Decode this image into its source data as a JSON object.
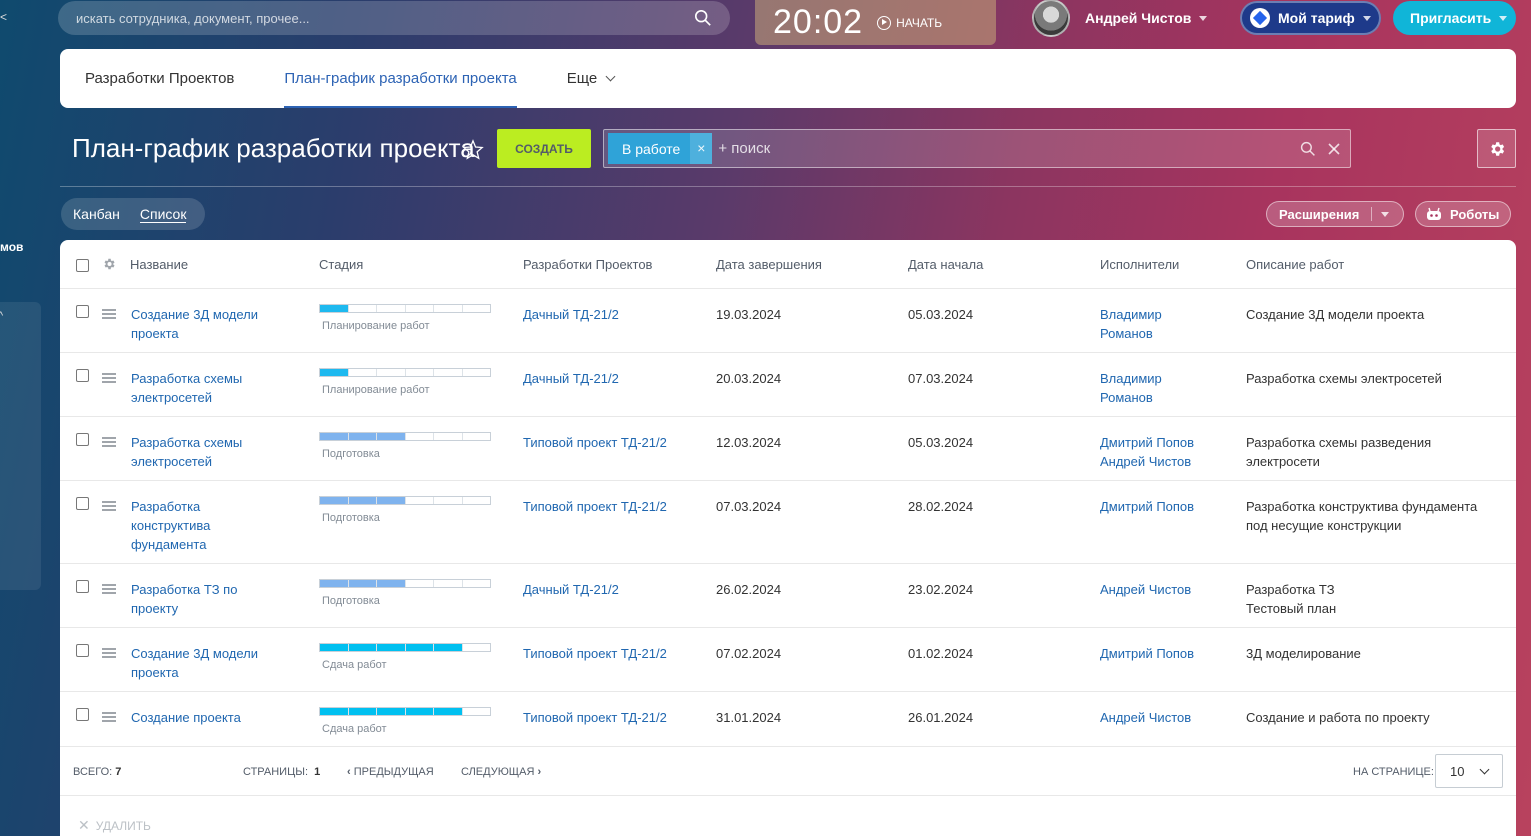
{
  "topbar": {
    "search_placeholder": "искать сотрудника, документ, прочее...",
    "clock_time": "20:02",
    "clock_start_label": "НАЧАТЬ",
    "user_name": "Андрей Чистов",
    "tariff_label": "Мой тариф",
    "invite_label": "Пригласить"
  },
  "left_strip": {
    "text": "мов"
  },
  "tabs": [
    {
      "label": "Разработки Проектов"
    },
    {
      "label": "План-график разработки проекта"
    },
    {
      "label": "Еще"
    }
  ],
  "page": {
    "title": "План-график разработки проекта",
    "create_label": "СОЗДАТЬ",
    "filter_chip": "В работе",
    "filter_search_placeholder": "+ поиск"
  },
  "views": {
    "kanban": "Канбан",
    "list": "Список"
  },
  "toolbar": {
    "extensions_label": "Расширения",
    "robots_label": "Роботы"
  },
  "table": {
    "columns": [
      "Название",
      "Стадия",
      "Разработки Проектов",
      "Дата завершения",
      "Дата начала",
      "Исполнители",
      "Описание работ"
    ],
    "rows": [
      {
        "name": "Создание 3Д модели проекта",
        "stage": "Планирование работ",
        "stage_progress": 0.17,
        "stage_color": "#1eb9ef",
        "project": "Дачный ТД-21/2",
        "end": "19.03.2024",
        "start": "05.03.2024",
        "assignees": [
          "Владимир Романов"
        ],
        "description": "Создание 3Д модели проекта"
      },
      {
        "name": "Разработка схемы электросетей",
        "stage": "Планирование работ",
        "stage_progress": 0.17,
        "stage_color": "#1eb9ef",
        "project": "Дачный ТД-21/2",
        "end": "20.03.2024",
        "start": "07.03.2024",
        "assignees": [
          "Владимир Романов"
        ],
        "description": "Разработка схемы электросетей"
      },
      {
        "name": "Разработка схемы электросетей",
        "stage": "Подготовка",
        "stage_progress": 0.5,
        "stage_color": "#7fb3ee",
        "project": "Типовой проект ТД-21/2",
        "end": "12.03.2024",
        "start": "05.03.2024",
        "assignees": [
          "Дмитрий Попов",
          "Андрей Чистов"
        ],
        "description": "Разработка схемы разведения электросети"
      },
      {
        "name": "Разработка конструктива фундамента",
        "stage": "Подготовка",
        "stage_progress": 0.5,
        "stage_color": "#7fb3ee",
        "project": "Типовой проект ТД-21/2",
        "end": "07.03.2024",
        "start": "28.02.2024",
        "assignees": [
          "Дмитрий Попов"
        ],
        "description": "Разработка конструктива фундамента под несущие конструкции"
      },
      {
        "name": "Разработка ТЗ по проекту",
        "stage": "Подготовка",
        "stage_progress": 0.5,
        "stage_color": "#7fb3ee",
        "project": "Дачный ТД-21/2",
        "end": "26.02.2024",
        "start": "23.02.2024",
        "assignees": [
          "Андрей Чистов"
        ],
        "description": "Разработка ТЗ\nТестовый план"
      },
      {
        "name": "Создание 3Д модели проекта",
        "stage": "Сдача работ",
        "stage_progress": 0.83,
        "stage_color": "#00c0f0",
        "project": "Типовой проект ТД-21/2",
        "end": "07.02.2024",
        "start": "01.02.2024",
        "assignees": [
          "Дмитрий Попов"
        ],
        "description": "3Д моделирование"
      },
      {
        "name": "Создание проекта",
        "stage": "Сдача работ",
        "stage_progress": 0.83,
        "stage_color": "#00c0f0",
        "project": "Типовой проект ТД-21/2",
        "end": "31.01.2024",
        "start": "26.01.2024",
        "assignees": [
          "Андрей Чистов"
        ],
        "description": "Создание и работа по проекту"
      }
    ]
  },
  "footer": {
    "total_label": "ВСЕГО:",
    "total_value": "7",
    "pages_label": "СТРАНИЦЫ:",
    "pages_value": "1",
    "prev_label": "ПРЕДЫДУЩАЯ",
    "next_label": "СЛЕДУЮЩАЯ",
    "per_page_label": "НА СТРАНИЦЕ:",
    "per_page_value": "10",
    "delete_label": "УДАЛИТЬ"
  }
}
